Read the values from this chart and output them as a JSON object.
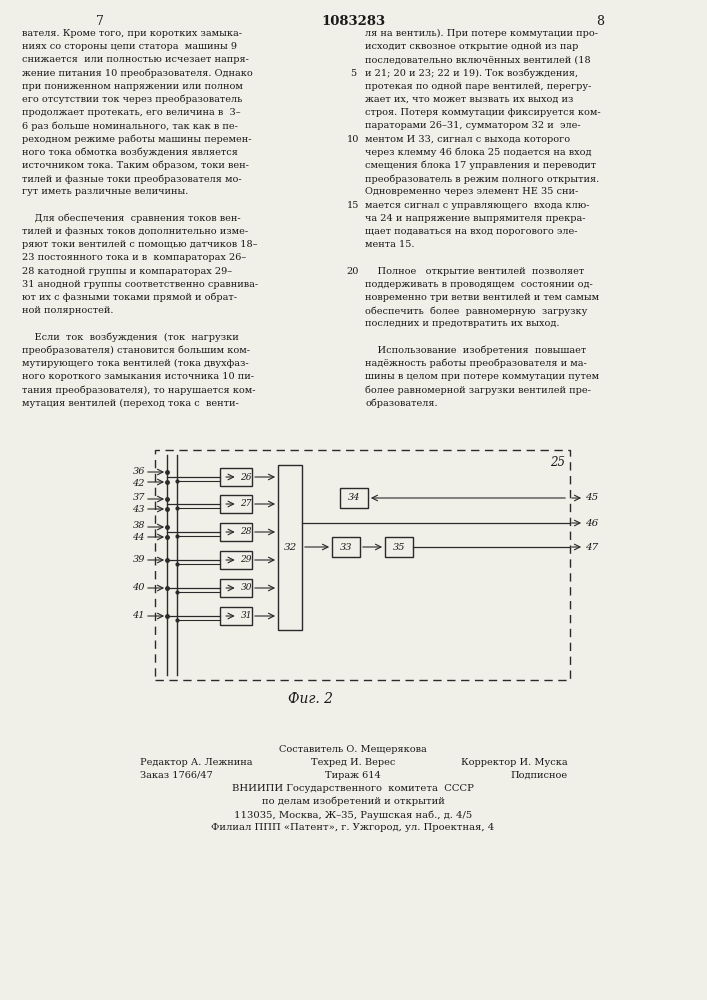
{
  "page_number_center": "1083283",
  "page_number_left": "7",
  "page_number_right": "8",
  "background_color": "#f0efe8",
  "text_color": "#1a1a1a",
  "left_column_text": [
    "вателя. Кроме того, при коротких замыка-",
    "ниях со стороны цепи статора  машины 9",
    "снижается  или полностью исчезает напря-",
    "жение питания 10 преобразователя. Однако",
    "при пониженном напряжении или полном",
    "его отсутствии ток через преобразователь",
    "продолжает протекать, его величина в  3–",
    "6 раз больше номинального, так как в пе-",
    "реходном режиме работы машины перемен-",
    "ного тока обмотка возбуждения является",
    "источником тока. Таким образом, токи вен-",
    "тилей и фазные токи преобразователя мо-",
    "гут иметь различные величины.",
    "",
    "    Для обеспечения  сравнения токов вен-",
    "тилей и фазных токов дополнительно изме-",
    "ряют токи вентилей с помощью датчиков 18–",
    "23 постоянного тока и в  компараторах 26–",
    "28 катодной группы и компараторах 29–",
    "31 анодной группы соответственно сравнива-",
    "ют их с фазными токами прямой и обрат-",
    "ной полярностей.",
    "",
    "    Если  ток  возбуждения  (ток  нагрузки",
    "преобразователя) становится большим ком-",
    "мутирующего тока вентилей (тока двухфаз-",
    "ного короткого замыкания источника 10 пи-",
    "тания преобразователя), то нарушается ком-",
    "мутация вентилей (переход тока с  венти-"
  ],
  "right_column_text": [
    "ля на вентиль). При потере коммутации про-",
    "исходит сквозное открытие одной из пар",
    "последовательно включённых вентилей (18",
    "и 21; 20 и 23; 22 и 19). Ток возбуждения,",
    "протекая по одной паре вентилей, перегру-",
    "жает их, что может вызвать их выход из",
    "строя. Потеря коммутации фиксируется ком-",
    "параторами 26–31, сумматором 32 и  эле-",
    "ментом И 33, сигнал с выхода которого",
    "через клемму 46 блока 25 подается на вход",
    "смещения блока 17 управления и переводит",
    "преобразователь в режим полного открытия.",
    "Одновременно через элемент НЕ 35 сни-",
    "мается сигнал с управляющего  входа клю-",
    "ча 24 и напряжение выпрямителя прекра-",
    "щает подаваться на вход порогового эле-",
    "мента 15.",
    "",
    "    Полное   открытие вентилей  позволяет",
    "поддерживать в проводящем  состоянии од-",
    "новременно три ветви вентилей и тем самым",
    "обеспечить  более  равномерную  загрузку",
    "последних и предотвратить их выход.",
    "",
    "    Использование  изобретения  повышает",
    "надёжность работы преобразователя и ма-",
    "шины в целом при потере коммутации путем",
    "более равномерной загрузки вентилей пре-",
    "образователя."
  ],
  "figure_caption": "Фиг. 2",
  "footer_line0": "Составитель О. Мещерякова",
  "footer_line1_left": "Редактор А. Лежнина",
  "footer_line1_mid": "Техред И. Верес",
  "footer_line1_right": "Корректор И. Муска",
  "footer_line2_left": "Заказ 1766/47",
  "footer_line2_mid": "Тираж 614",
  "footer_line2_right": "Подписное",
  "footer_line3": "ВНИИПИ Государственного  комитета  СССР",
  "footer_line4": "по делам изобретений и открытий",
  "footer_line5": "113035, Москва, Ж–35, Раушская наб., д. 4/5",
  "footer_line6": "Филиал ППП «Патент», г. Ужгород, ул. Проектная, 4"
}
